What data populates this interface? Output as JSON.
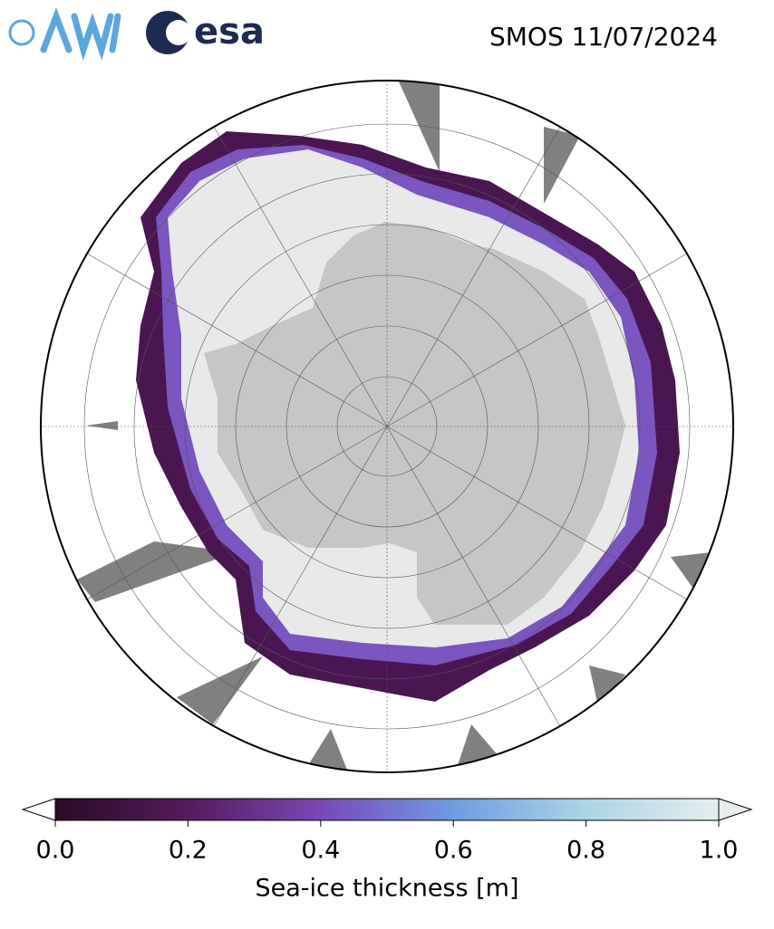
{
  "logos": [
    "esa"
  ],
  "title": "SMOS 11/07/2024",
  "colorbar": {
    "label": "Sea-ice thickness [m]",
    "clim": [
      0,
      1
    ],
    "ticks": [
      {
        "value": 0,
        "label": "0.0"
      },
      0.2,
      0.4,
      0.6,
      0.8,
      {
        "value": 1,
        "label": "1.0"
      }
    ],
    "colormap": [
      "#2a0a25",
      "#561a5e",
      "#7a47b6",
      "#6d9ce2",
      "#a9d5e6",
      "#e6eeee"
    ]
  }
}
